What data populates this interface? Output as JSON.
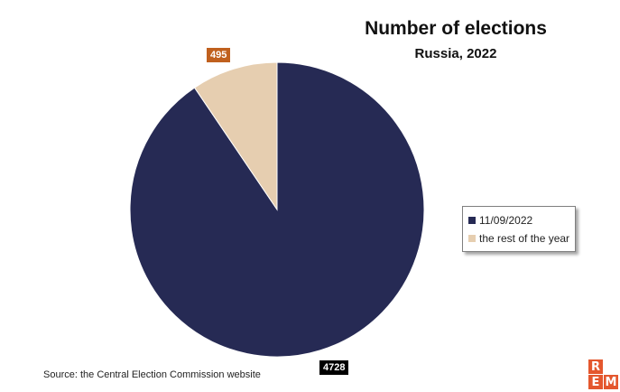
{
  "chart_data": {
    "type": "pie",
    "title": "Number of elections",
    "subtitle": "Russia, 2022",
    "categories": [
      "11/09/2022",
      "the rest of the year"
    ],
    "values": [
      4728,
      495
    ],
    "colors": [
      "#262a54",
      "#e6ceb0"
    ],
    "label_colors": [
      "#000000",
      "#c0601e"
    ],
    "legend_position": "right",
    "start_angle": "12 o'clock, clockwise"
  },
  "source": "Source: the Central Election Commission website",
  "logo": {
    "letters": [
      "R",
      "E",
      "M"
    ],
    "color": "#e4572e"
  }
}
